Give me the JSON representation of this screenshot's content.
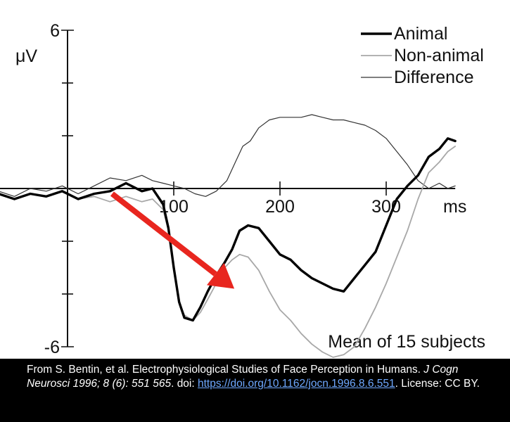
{
  "chart_data": {
    "type": "line",
    "ylabel": "μV",
    "xlabel": "ms",
    "xlim": [
      -95,
      365
    ],
    "ylim": [
      -6,
      6
    ],
    "x_ticks": [
      100,
      200,
      300
    ],
    "x_tick_labels": [
      "100",
      "200",
      "300"
    ],
    "y_ticks": [
      -6,
      6
    ],
    "y_tick_labels": [
      "-6",
      "6"
    ],
    "y_minor_ticks": [
      -4,
      -2,
      2,
      4
    ],
    "annotation": "Mean of 15 subjects",
    "legend_position": "top-right",
    "series": [
      {
        "name": "Animal",
        "color": "#000000",
        "style": "thick",
        "x": [
          -95,
          -80,
          -65,
          -50,
          -35,
          -20,
          -5,
          10,
          25,
          40,
          55,
          70,
          80,
          90,
          95,
          100,
          105,
          110,
          118,
          125,
          132,
          140,
          148,
          155,
          162,
          170,
          180,
          190,
          200,
          210,
          220,
          230,
          240,
          250,
          260,
          270,
          280,
          290,
          300,
          310,
          320,
          330,
          340,
          350,
          358,
          365
        ],
        "y": [
          -0.3,
          -0.4,
          -0.2,
          -0.4,
          -0.2,
          -0.3,
          -0.1,
          -0.4,
          -0.2,
          -0.1,
          0.2,
          -0.1,
          0.0,
          -0.6,
          -1.5,
          -3.0,
          -4.3,
          -4.9,
          -5.0,
          -4.5,
          -3.9,
          -3.3,
          -2.8,
          -2.3,
          -1.6,
          -1.4,
          -1.5,
          -2.0,
          -2.5,
          -2.7,
          -3.1,
          -3.4,
          -3.6,
          -3.8,
          -3.9,
          -3.4,
          -2.9,
          -2.4,
          -1.4,
          -0.4,
          0.1,
          0.5,
          1.2,
          1.5,
          1.9,
          1.8
        ]
      },
      {
        "name": "Non-animal",
        "color": "#a8a8a8",
        "style": "thin",
        "x": [
          -95,
          -80,
          -65,
          -50,
          -35,
          -20,
          -5,
          10,
          25,
          40,
          55,
          70,
          80,
          90,
          95,
          100,
          105,
          110,
          118,
          125,
          132,
          140,
          148,
          155,
          162,
          170,
          180,
          190,
          200,
          210,
          220,
          230,
          240,
          250,
          260,
          270,
          280,
          290,
          300,
          310,
          320,
          330,
          340,
          350,
          358,
          365
        ],
        "y": [
          -0.3,
          -0.4,
          -0.2,
          -0.4,
          -0.2,
          -0.3,
          -0.1,
          -0.4,
          -0.3,
          -0.5,
          -0.3,
          -0.5,
          -0.4,
          -0.8,
          -1.6,
          -3.0,
          -4.3,
          -4.8,
          -5.0,
          -4.7,
          -4.2,
          -3.6,
          -3.0,
          -2.7,
          -2.5,
          -2.6,
          -3.1,
          -3.9,
          -4.6,
          -5.0,
          -5.5,
          -5.9,
          -6.2,
          -6.4,
          -6.3,
          -6.0,
          -5.3,
          -4.5,
          -3.6,
          -2.6,
          -1.6,
          -0.4,
          0.6,
          1.0,
          1.4,
          1.6
        ]
      },
      {
        "name": "Difference",
        "color": "#333333",
        "style": "hairline",
        "x": [
          -95,
          -80,
          -65,
          -50,
          -35,
          -20,
          -5,
          10,
          25,
          40,
          55,
          70,
          80,
          90,
          100,
          110,
          120,
          130,
          140,
          150,
          158,
          165,
          172,
          180,
          190,
          200,
          210,
          220,
          230,
          240,
          250,
          260,
          270,
          280,
          290,
          300,
          310,
          320,
          330,
          340,
          350,
          358,
          365
        ],
        "y": [
          -0.2,
          -0.3,
          -0.1,
          -0.3,
          0.0,
          -0.1,
          0.1,
          -0.2,
          0.1,
          0.4,
          0.3,
          0.5,
          0.3,
          0.2,
          0.1,
          0.0,
          -0.2,
          -0.3,
          -0.1,
          0.3,
          1.0,
          1.6,
          1.8,
          2.3,
          2.6,
          2.7,
          2.7,
          2.7,
          2.8,
          2.7,
          2.6,
          2.6,
          2.5,
          2.4,
          2.2,
          1.9,
          1.4,
          0.9,
          0.3,
          0.0,
          0.2,
          0.0,
          0.1
        ]
      }
    ],
    "arrow": {
      "color": "#e8261f",
      "from": [
        42,
        -0.2
      ],
      "to": [
        157,
        -3.8
      ]
    }
  },
  "caption": {
    "line1_prefix": "From S. Bentin, et al. Electrophysiological Studies of Face Perception in Humans. ",
    "journal": "J Cogn Neurosci 1996; 8 (6): 551  565",
    "line_mid": ". doi: ",
    "doi_link": "https://doi.org/10.1162/jocn.1996.8.6.551",
    "license": ". License: CC BY."
  }
}
